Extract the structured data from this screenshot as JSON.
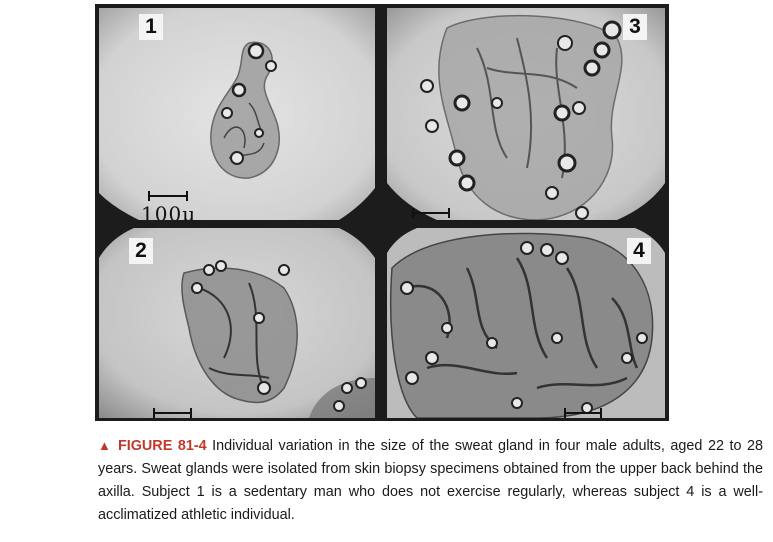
{
  "figure": {
    "panels": [
      {
        "number": "1",
        "scale_label": "100μ"
      },
      {
        "number": "2",
        "scale_label": ""
      },
      {
        "number": "3",
        "scale_label": ""
      },
      {
        "number": "4",
        "scale_label": ""
      }
    ]
  },
  "caption": {
    "marker": "▲",
    "figure_label": "FIGURE 81-4",
    "text": "Individual variation in the size of the sweat gland in four male adults, aged 22 to 28 years. Sweat glands were isolated from skin biopsy specimens obtained from the upper back behind the axilla. Subject 1 is a sedentary man who does not exercise regularly, whereas subject 4 is a well-acclimatized athletic individual.",
    "colors": {
      "figure_label": "#c0392b",
      "text": "#1a1a1a"
    }
  }
}
